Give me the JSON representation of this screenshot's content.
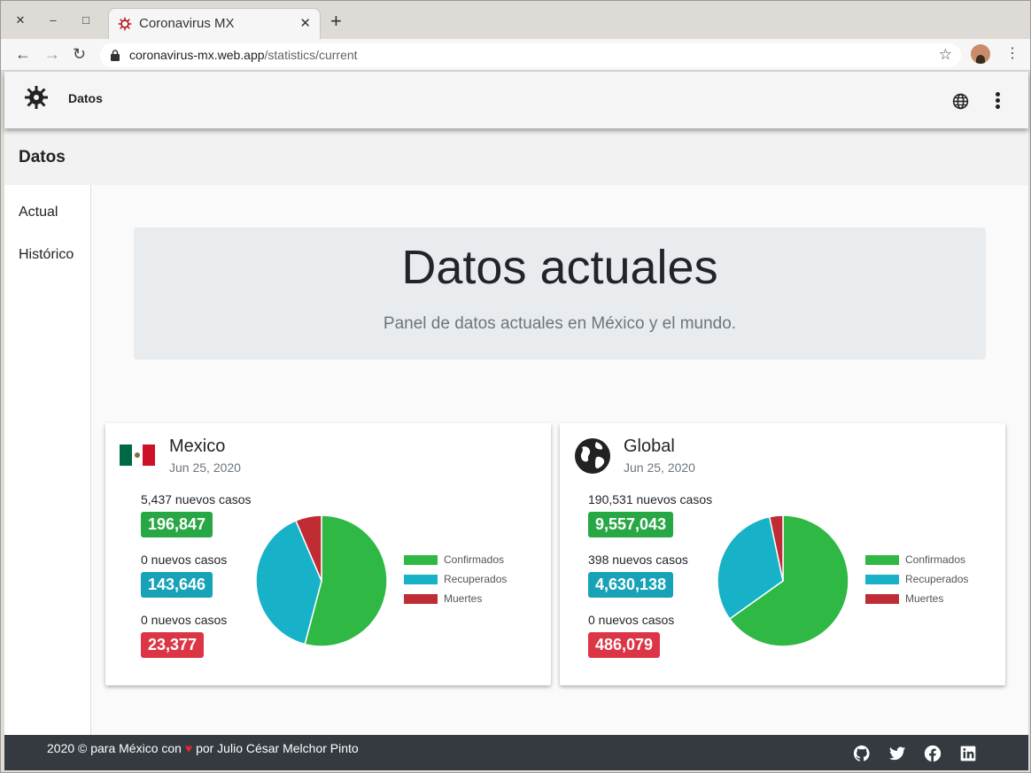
{
  "browser": {
    "tab_title": "Coronavirus MX",
    "url_host": "coronavirus-mx.web.app",
    "url_path": "/statistics/current"
  },
  "appbar": {
    "brand": "Datos"
  },
  "subheader": {
    "title": "Datos"
  },
  "sidebar": {
    "items": [
      {
        "label": "Actual"
      },
      {
        "label": "Histórico"
      }
    ]
  },
  "jumbotron": {
    "title": "Datos actuales",
    "subtitle": "Panel de datos actuales en México y el mundo."
  },
  "legend": {
    "confirmed": "Confirmados",
    "recovered": "Recuperados",
    "deaths": "Muertes"
  },
  "colors": {
    "confirmed": "#2fb844",
    "recovered": "#17b2c7",
    "deaths": "#bf2c34",
    "badge_confirmed": "#28a745",
    "badge_recovered": "#17a2b8",
    "badge_deaths": "#dc3545"
  },
  "cards": [
    {
      "name": "Mexico",
      "date": "Jun 25, 2020",
      "confirmed": {
        "new": "5,437 nuevos casos",
        "total": "196,847"
      },
      "recovered": {
        "new": "0 nuevos casos",
        "total": "143,646"
      },
      "deaths": {
        "new": "0 nuevos casos",
        "total": "23,377"
      }
    },
    {
      "name": "Global",
      "date": "Jun 25, 2020",
      "confirmed": {
        "new": "190,531 nuevos casos",
        "total": "9,557,043"
      },
      "recovered": {
        "new": "398 nuevos casos",
        "total": "4,630,138"
      },
      "deaths": {
        "new": "0 nuevos casos",
        "total": "486,079"
      }
    }
  ],
  "footer": {
    "prefix": "2020 © para México con",
    "suffix": "por Julio César Melchor Pinto"
  }
}
